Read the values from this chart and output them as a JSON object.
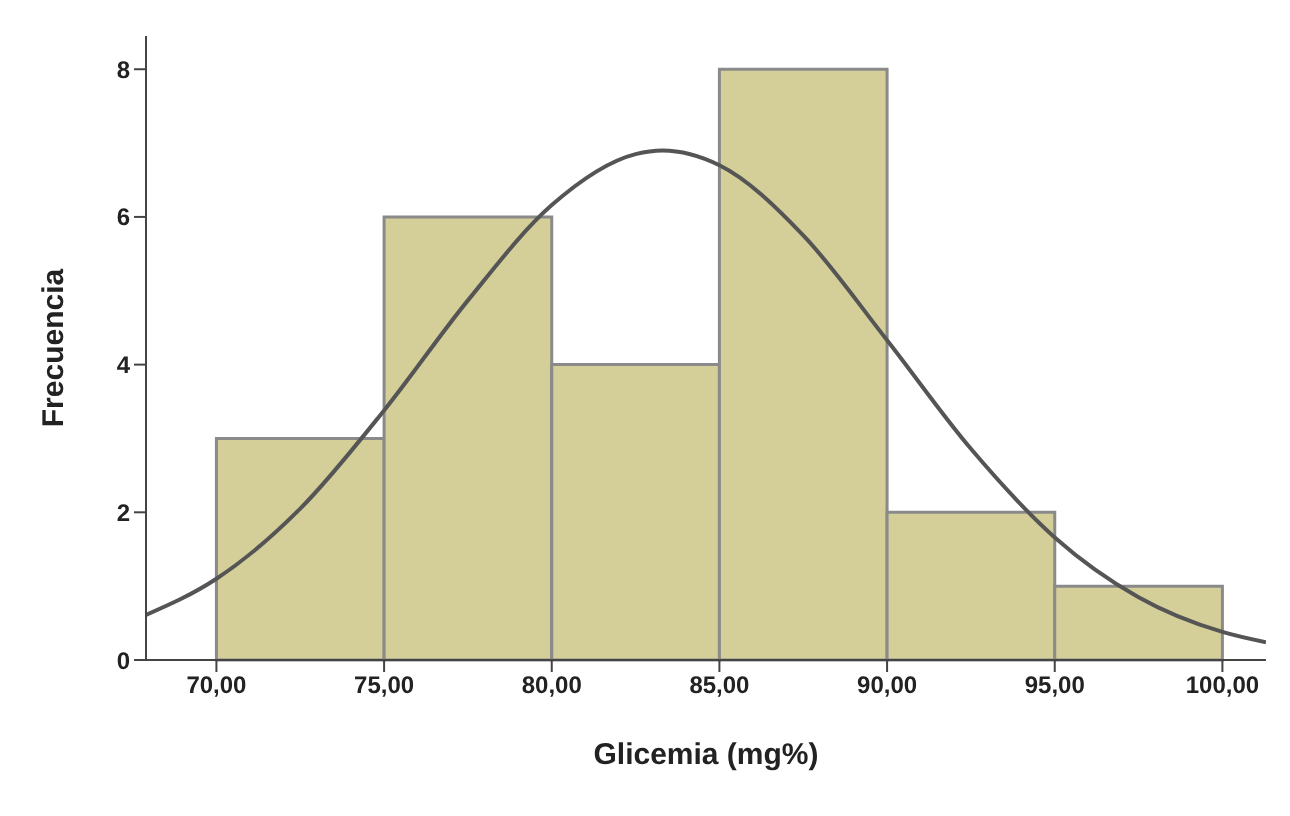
{
  "chart_data": {
    "type": "histogram",
    "xlabel": "Glicemia (mg%)",
    "ylabel": "Frecuencia",
    "bins": [
      70,
      75,
      80,
      85,
      90,
      95,
      100
    ],
    "values": [
      3,
      6,
      4,
      8,
      2,
      1
    ],
    "color": "#d4cf98",
    "xlim": [
      67.9,
      101.3
    ],
    "ylim": [
      0,
      8.45
    ],
    "xticks": [
      {
        "value": 70,
        "label": "70,00"
      },
      {
        "value": 75,
        "label": "75,00"
      },
      {
        "value": 80,
        "label": "80,00"
      },
      {
        "value": 85,
        "label": "85,00"
      },
      {
        "value": 90,
        "label": "90,00"
      },
      {
        "value": 95,
        "label": "95,00"
      },
      {
        "value": 100,
        "label": "100,00"
      }
    ],
    "yticks": [
      0,
      2,
      4,
      6,
      8
    ],
    "grid": false,
    "legend": false,
    "series": [
      {
        "type": "line",
        "color": "#555555",
        "x": [
          67.9,
          70,
          72.5,
          75,
          77.5,
          80,
          82.5,
          83.3,
          85,
          87.5,
          90,
          92.5,
          95,
          97.5,
          100,
          101.3
        ],
        "values": [
          0.61,
          1.1,
          2.05,
          3.38,
          4.87,
          6.16,
          6.85,
          6.9,
          6.7,
          5.75,
          4.33,
          2.86,
          1.66,
          0.85,
          0.38,
          0.24
        ]
      }
    ]
  }
}
